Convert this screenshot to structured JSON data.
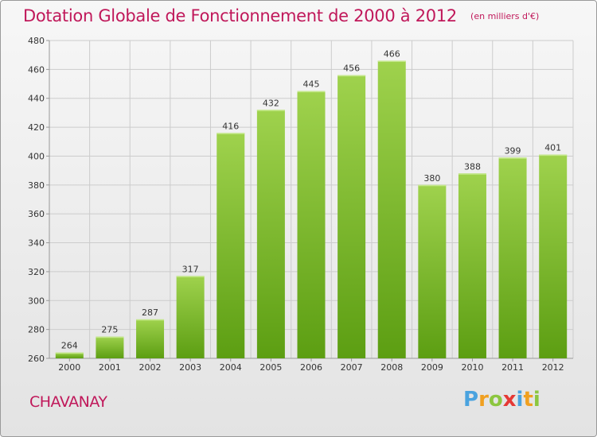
{
  "chart_data": {
    "type": "bar",
    "title": "Dotation Globale de Fonctionnement de 2000 à 2012",
    "subtitle": "(en milliers d'€)",
    "categories": [
      "2000",
      "2001",
      "2002",
      "2003",
      "2004",
      "2005",
      "2006",
      "2007",
      "2008",
      "2009",
      "2010",
      "2011",
      "2012"
    ],
    "values": [
      264,
      275,
      287,
      317,
      416,
      432,
      445,
      456,
      466,
      380,
      388,
      399,
      401
    ],
    "ylim": [
      260,
      480
    ],
    "yticks": [
      260,
      280,
      300,
      320,
      340,
      360,
      380,
      400,
      420,
      440,
      460,
      480
    ],
    "xlabel": "",
    "ylabel": "",
    "grid": true,
    "bar_color_top": "#9fd24d",
    "bar_color_bottom": "#5c9e12"
  },
  "place_name": "CHAVANAY",
  "brand": {
    "letters": [
      "P",
      "r",
      "o",
      "x",
      "i",
      "t",
      "i"
    ],
    "colors": [
      "#4aa3df",
      "#f0a020",
      "#8cc63f",
      "#e53935",
      "#4aa3df",
      "#f0a020",
      "#8cc63f"
    ]
  },
  "colors": {
    "title": "#c0185a",
    "grid": "#cccccc",
    "axis": "#999999"
  }
}
